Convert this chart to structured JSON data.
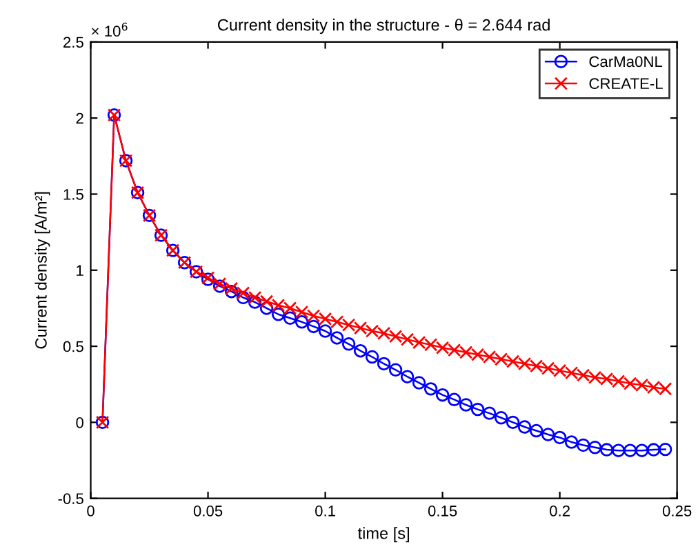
{
  "chart_data": {
    "type": "line",
    "title": "Current density in the structure - θ = 2.644 rad",
    "xlabel": "time [s]",
    "ylabel": "Current density [A/m²]",
    "annotations": [
      "× 10$^{6}$"
    ],
    "x": [
      0.005,
      0.01,
      0.015,
      0.02,
      0.025,
      0.03,
      0.035,
      0.04,
      0.045,
      0.05,
      0.055,
      0.06,
      0.065,
      0.07,
      0.075,
      0.08,
      0.085,
      0.09,
      0.095,
      0.1,
      0.105,
      0.11,
      0.115,
      0.12,
      0.125,
      0.13,
      0.135,
      0.14,
      0.145,
      0.15,
      0.155,
      0.16,
      0.165,
      0.17,
      0.175,
      0.18,
      0.185,
      0.19,
      0.195,
      0.2,
      0.205,
      0.21,
      0.215,
      0.22,
      0.225,
      0.23,
      0.235,
      0.24,
      0.245
    ],
    "series": [
      {
        "name": "CarMa0NL",
        "color": "#0000ff",
        "marker": "circle",
        "values": [
          0,
          2.02,
          1.72,
          1.51,
          1.36,
          1.23,
          1.13,
          1.05,
          0.99,
          0.94,
          0.895,
          0.86,
          0.82,
          0.79,
          0.75,
          0.71,
          0.685,
          0.66,
          0.63,
          0.6,
          0.555,
          0.515,
          0.47,
          0.43,
          0.385,
          0.345,
          0.3,
          0.26,
          0.22,
          0.18,
          0.15,
          0.115,
          0.085,
          0.06,
          0.03,
          0.0,
          -0.03,
          -0.055,
          -0.08,
          -0.1,
          -0.13,
          -0.15,
          -0.165,
          -0.18,
          -0.185,
          -0.185,
          -0.185,
          -0.18,
          -0.178
        ]
      },
      {
        "name": "CREATE-L",
        "color": "#ff0000",
        "marker": "cross",
        "values": [
          0,
          2.02,
          1.72,
          1.51,
          1.36,
          1.23,
          1.13,
          1.05,
          0.99,
          0.95,
          0.91,
          0.88,
          0.85,
          0.82,
          0.795,
          0.77,
          0.75,
          0.725,
          0.7,
          0.68,
          0.66,
          0.64,
          0.62,
          0.6,
          0.585,
          0.565,
          0.545,
          0.525,
          0.51,
          0.49,
          0.475,
          0.46,
          0.445,
          0.43,
          0.415,
          0.4,
          0.385,
          0.37,
          0.355,
          0.34,
          0.325,
          0.31,
          0.295,
          0.285,
          0.27,
          0.255,
          0.245,
          0.23,
          0.22
        ]
      }
    ],
    "xlim": [
      0,
      0.25
    ],
    "xticks": [
      0,
      0.05,
      0.1,
      0.15,
      0.2,
      0.25
    ],
    "ylim": [
      -0.5,
      2.5
    ],
    "yticks": [
      -0.5,
      0,
      0.5,
      1,
      1.5,
      2,
      2.5
    ],
    "legend": "top right",
    "line_style": "solid"
  }
}
